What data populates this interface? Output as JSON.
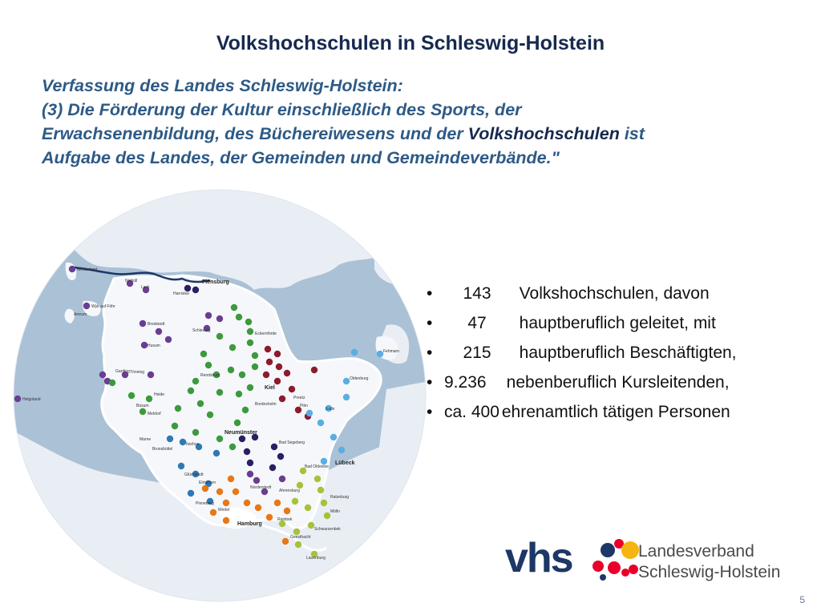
{
  "title": "Volkshochschulen in Schleswig-Holstein",
  "quote": {
    "line1": "Verfassung des Landes Schleswig-Holstein:",
    "line2": "(3) Die Förderung der Kultur einschließlich des Sports, der",
    "line3a": "Erwachsenenbildung, des Büchereiwesens und der ",
    "line3b": "Volkshochschulen",
    "line3c": " ist",
    "line4": "Aufgabe des Landes, der Gemeinden und Gemeindeverbände.\""
  },
  "stats": [
    {
      "bullet": "•",
      "number": "143",
      "text": "Volkshochschulen, davon"
    },
    {
      "bullet": "•",
      "number": "47",
      "text": "hauptberuflich geleitet, mit"
    },
    {
      "bullet": "•",
      "number": "215",
      "text": "hauptberuflich Beschäftigten,"
    },
    {
      "bullet": "•",
      "number": "9.236",
      "text": "nebenberuflich Kursleitenden,"
    },
    {
      "bullet": "•",
      "number": "ca. 400",
      "text": "ehrenamtlich tätigen Personen"
    }
  ],
  "map": {
    "cities": {
      "flensburg": "Flensburg",
      "kiel": "Kiel",
      "neumuenster": "Neumünster",
      "luebeck": "Lübeck",
      "hamburg": "Hamburg"
    },
    "places": {
      "westerland": "Westerland",
      "niebull": "Niebüll",
      "leck": "Leck",
      "harrislee": "Harrislee",
      "amrum": "Amrum",
      "wyk": "Wyk auf Föhr",
      "bredstedt": "Bredstedt",
      "husum": "Husum",
      "helgoland": "Helgoland",
      "garding": "Garding",
      "toenning": "Tönning",
      "heide": "Heide",
      "buesum": "Büsum",
      "meldorf": "Meldorf",
      "marne": "Marne",
      "brunsbuettel": "Brunsbüttel",
      "itzehoe": "Itzehoe",
      "glueckstadt": "Glückstadt",
      "elmshorn": "Elmshorn",
      "pinneberg": "Pinneberg",
      "wedel": "Wedel",
      "schleswig": "Schleswig",
      "eckernfoerde": "Eckernförde",
      "rendsburg": "Rendsburg",
      "bordesholm": "Bordesholm",
      "preetz": "Preetz",
      "ploen": "Plön",
      "eutin": "Eutin",
      "oldenburg": "Oldenburg",
      "fehmarn": "Fehmarn",
      "segeberg": "Bad Segeberg",
      "oldesloe": "Bad Oldesloe",
      "ahrensburg": "Ahrensburg",
      "norderstedt": "Norderstedt",
      "reinbek": "Reinbek",
      "geesthacht": "Geesthacht",
      "lauenburg": "Lauenburg",
      "moelln": "Mölln",
      "ratzeburg": "Ratzeburg",
      "schwarzenbek": "Schwarzenbek"
    }
  },
  "colors": {
    "title": "#16294f",
    "quote": "#2e5a86",
    "sea": "#abc1d6",
    "land_outer": "#e9eef4",
    "land_state": "#f5f7fa",
    "dots": [
      "#6a3d93",
      "#2e79b5",
      "#3c9a3c",
      "#8c1c2c",
      "#e67817",
      "#a6c23b",
      "#5aaee3",
      "#2a1f63"
    ]
  },
  "logo": {
    "mark": "vhs",
    "line1": "Landesverband",
    "line2": "Schleswig-Holstein"
  },
  "page_number": "5"
}
